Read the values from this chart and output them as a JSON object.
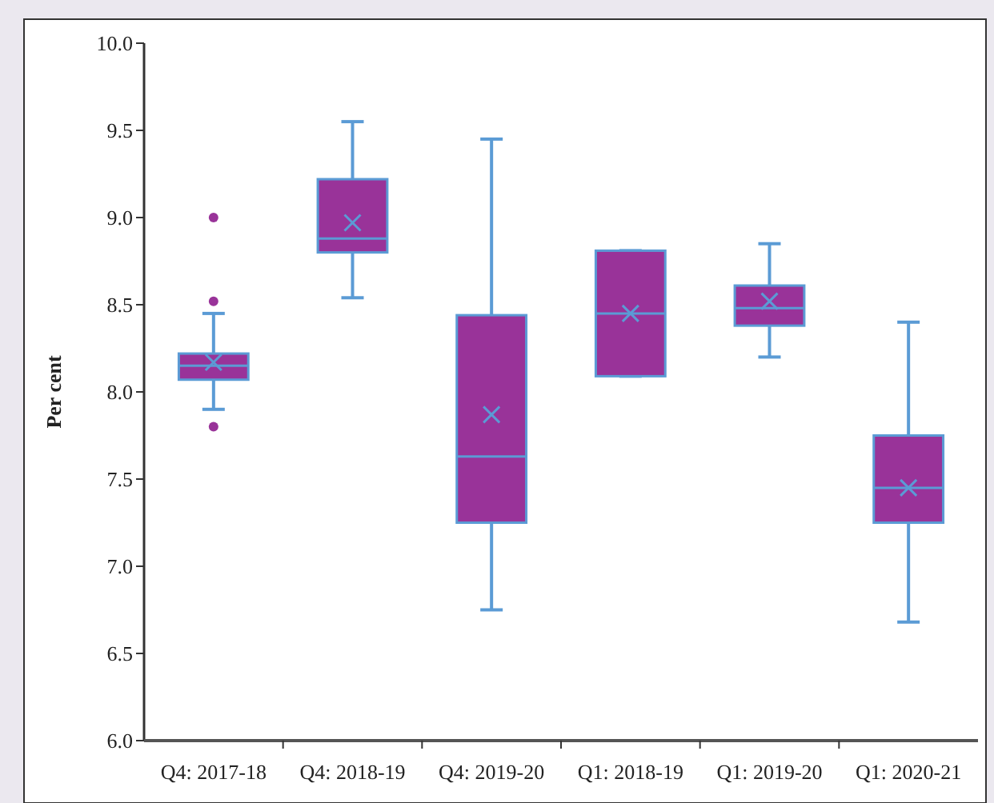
{
  "chart_data": {
    "type": "box",
    "ylabel": "Per cent",
    "categories": [
      "Q4: 2017-18",
      "Q4: 2018-19",
      "Q4: 2019-20",
      "Q1: 2018-19",
      "Q1: 2019-20",
      "Q1: 2020-21"
    ],
    "ylim": [
      6,
      10
    ],
    "yticks": [
      {
        "value": 6,
        "label": "6.0"
      },
      {
        "value": 6.5,
        "label": "6.5"
      },
      {
        "value": 7,
        "label": "7.0"
      },
      {
        "value": 7.5,
        "label": "7.5"
      },
      {
        "value": 8,
        "label": "8.0"
      },
      {
        "value": 8.5,
        "label": "8.5"
      },
      {
        "value": 9,
        "label": "9.0"
      },
      {
        "value": 9.5,
        "label": "9.5"
      },
      {
        "value": 10,
        "label": "10.0"
      }
    ],
    "grid": false,
    "series": [
      {
        "color": "#993399",
        "boxes": [
          {
            "low": 7.9,
            "q1": 8.07,
            "median": 8.15,
            "q3": 8.22,
            "high": 8.45,
            "mean": 8.17,
            "outliers": [
              9.0,
              8.52,
              7.8
            ]
          },
          {
            "low": 8.54,
            "q1": 8.8,
            "median": 8.88,
            "q3": 9.22,
            "high": 9.55,
            "mean": 8.97
          },
          {
            "low": 6.75,
            "q1": 7.25,
            "median": 7.63,
            "q3": 8.44,
            "high": 9.45,
            "mean": 7.87
          },
          {
            "low": 8.09,
            "q1": 8.09,
            "median": 8.45,
            "q3": 8.81,
            "high": 8.81,
            "mean": 8.45
          },
          {
            "low": 8.2,
            "q1": 8.38,
            "median": 8.48,
            "q3": 8.61,
            "high": 8.85,
            "mean": 8.52
          },
          {
            "low": 6.68,
            "q1": 7.25,
            "median": 7.45,
            "q3": 7.75,
            "high": 8.4,
            "mean": 7.45
          }
        ]
      }
    ]
  }
}
